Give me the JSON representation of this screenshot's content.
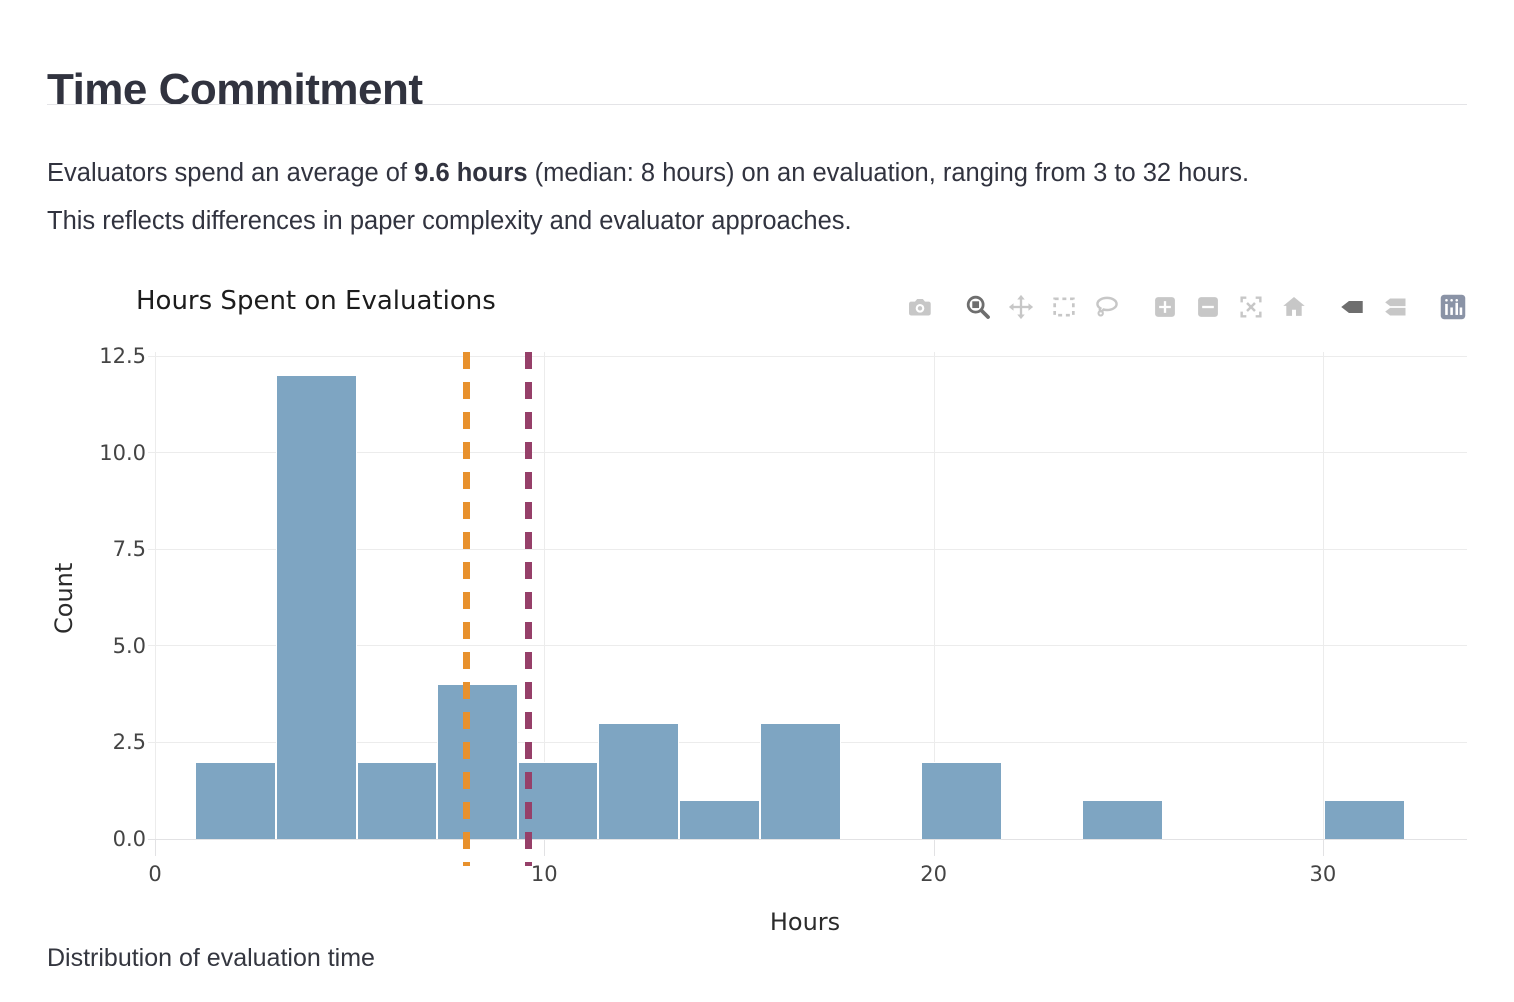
{
  "page": {
    "heading": "Time Commitment",
    "intro": {
      "sentence1_pre": "Evaluators spend an average of ",
      "sentence1_bold": "9.6 hours",
      "sentence1_post": " (median: 8 hours) on an evaluation, ranging from 3 to 32 hours.",
      "sentence2": "This reflects differences in paper complexity and evaluator approaches.",
      "mean_hours": "9.6",
      "median_hours": "8",
      "min_hours": "3",
      "max_hours": "32"
    },
    "caption": "Distribution of evaluation time"
  },
  "modebar": {
    "buttons": [
      {
        "name": "camera-icon",
        "title": "Download plot as a png",
        "state": "inactive",
        "group_start": false
      },
      {
        "name": "zoom-icon",
        "title": "Zoom",
        "state": "active",
        "group_start": true
      },
      {
        "name": "pan-icon",
        "title": "Pan",
        "state": "inactive",
        "group_start": false
      },
      {
        "name": "box-select-icon",
        "title": "Box Select",
        "state": "inactive",
        "group_start": false
      },
      {
        "name": "lasso-select-icon",
        "title": "Lasso Select",
        "state": "inactive",
        "group_start": false
      },
      {
        "name": "zoom-in-icon",
        "title": "Zoom in",
        "state": "inactive",
        "group_start": true
      },
      {
        "name": "zoom-out-icon",
        "title": "Zoom out",
        "state": "inactive",
        "group_start": false
      },
      {
        "name": "autoscale-icon",
        "title": "Autoscale",
        "state": "inactive",
        "group_start": false
      },
      {
        "name": "reset-axes-icon",
        "title": "Reset axes",
        "state": "inactive",
        "group_start": false
      },
      {
        "name": "hover-closest-icon",
        "title": "Show closest data on hover",
        "state": "active",
        "group_start": true
      },
      {
        "name": "hover-compare-icon",
        "title": "Compare data on hover",
        "state": "inactive",
        "group_start": false
      },
      {
        "name": "plotly-logo-icon",
        "title": "Produced with Plotly",
        "state": "logo",
        "group_start": true
      }
    ]
  },
  "chart_data": {
    "type": "bar",
    "subtype": "histogram",
    "title": "Hours Spent on Evaluations",
    "xlabel": "Hours",
    "ylabel": "Count",
    "bar_color": "#7EA5C2",
    "grid": true,
    "xlim": [
      0,
      33.7
    ],
    "ylim": [
      0,
      12.6
    ],
    "xticks": [
      0,
      10,
      20,
      30
    ],
    "xtick_labels": [
      "0",
      "10",
      "20",
      "30"
    ],
    "yticks": [
      0,
      2.5,
      5,
      7.5,
      10,
      12.5
    ],
    "ytick_labels": [
      "0.0",
      "2.5",
      "5.0",
      "7.5",
      "10.0",
      "12.5"
    ],
    "bins": [
      {
        "x0": 1.04,
        "x1": 3.11,
        "count": 2
      },
      {
        "x0": 3.11,
        "x1": 5.18,
        "count": 12
      },
      {
        "x0": 5.18,
        "x1": 7.25,
        "count": 2
      },
      {
        "x0": 7.25,
        "x1": 9.32,
        "count": 4
      },
      {
        "x0": 9.32,
        "x1": 11.39,
        "count": 2
      },
      {
        "x0": 11.39,
        "x1": 13.46,
        "count": 3
      },
      {
        "x0": 13.46,
        "x1": 15.54,
        "count": 1
      },
      {
        "x0": 15.54,
        "x1": 17.61,
        "count": 3
      },
      {
        "x0": 17.61,
        "x1": 19.68,
        "count": 0
      },
      {
        "x0": 19.68,
        "x1": 21.75,
        "count": 2
      },
      {
        "x0": 21.75,
        "x1": 23.82,
        "count": 0
      },
      {
        "x0": 23.82,
        "x1": 25.89,
        "count": 1
      },
      {
        "x0": 25.89,
        "x1": 27.96,
        "count": 0
      },
      {
        "x0": 27.96,
        "x1": 30.04,
        "count": 0
      },
      {
        "x0": 30.04,
        "x1": 32.11,
        "count": 1
      }
    ],
    "reference_lines": [
      {
        "label": "median",
        "x": 8,
        "color": "#E8912D",
        "style": "dashed"
      },
      {
        "label": "mean",
        "x": 9.6,
        "color": "#964069",
        "style": "dashed"
      }
    ],
    "legend": "none"
  }
}
